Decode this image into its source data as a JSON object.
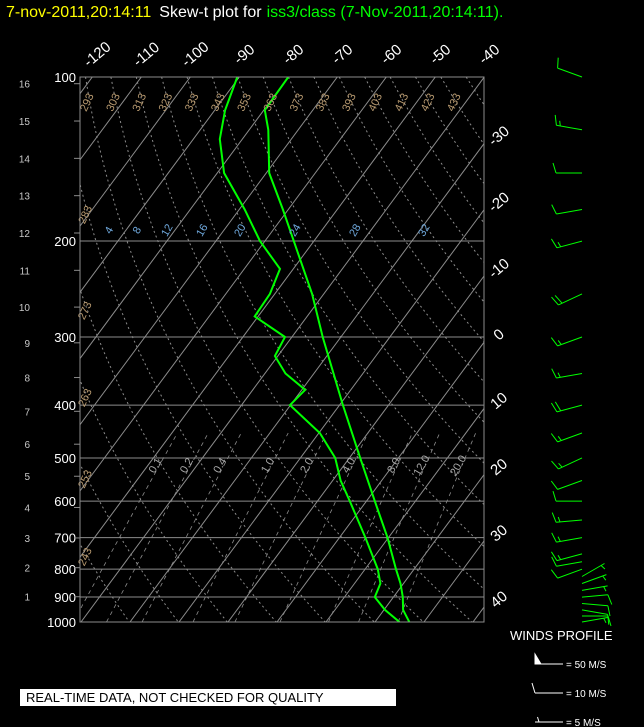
{
  "chart_data": {
    "type": "skewt",
    "title_time": "7-nov-2011,20:14:11",
    "title_prefix": "Skew-t plot for",
    "title_station": "iss3/class (7-Nov-2011,20:14:11).",
    "ylim": [
      1000,
      100
    ],
    "log_y": true,
    "yticks": [
      100,
      200,
      300,
      400,
      500,
      600,
      700,
      800,
      900,
      1000
    ],
    "height_ticks": [
      1,
      2,
      3,
      4,
      5,
      6,
      7,
      8,
      9,
      10,
      11,
      12,
      13,
      14,
      15,
      16
    ],
    "xticks": [
      -120,
      -110,
      -100,
      -90,
      -80,
      -70,
      -60,
      -50,
      -40,
      -30,
      -20,
      -10,
      0,
      10,
      20,
      30,
      40
    ],
    "grid_color": "#8c8c8c",
    "dry_adiabats": [
      243,
      253,
      263,
      273,
      283,
      293,
      303,
      313,
      323,
      333,
      343,
      353,
      363,
      373,
      383,
      393,
      403,
      413,
      423,
      433,
      443
    ],
    "dry_adiabat_color": "#b89a70",
    "mixing_ratios": [
      0.1,
      0.2,
      0.4,
      {
        "value": 1,
        "label": "1.0"
      },
      {
        "value": 2,
        "label": "2.0"
      },
      {
        "value": 4,
        "label": "4.0"
      },
      {
        "value": 8,
        "label": "8.0"
      },
      {
        "value": 12,
        "label": "12.0"
      },
      {
        "value": 20,
        "label": "20.0"
      }
    ],
    "moist_adiabat_labels": [
      4,
      8,
      12,
      16,
      20,
      24,
      28,
      32
    ],
    "moist_label_color": "#6fa8dc",
    "series": [
      {
        "color": "#00ff00",
        "pressure": [
          1000,
          950,
          900,
          850,
          800,
          700,
          600,
          500,
          400,
          300,
          250,
          200,
          175,
          150,
          125,
          115,
          100
        ],
        "values": [
          27,
          23.9,
          21.9,
          19.4,
          16.3,
          9.8,
          1.7,
          -7.8,
          -19.3,
          -33.7,
          -42.4,
          -54.1,
          -61.1,
          -69.4,
          -76.1,
          -79.8,
          -80
        ]
      },
      {
        "color": "#00ff00",
        "pressure": [
          1000,
          950,
          900,
          850,
          800,
          700,
          600,
          550,
          500,
          450,
          400,
          375,
          350,
          325,
          300,
          275,
          250,
          225,
          200,
          175,
          150,
          130,
          115,
          100
        ],
        "values": [
          25,
          20.2,
          16.2,
          15.3,
          12.6,
          5.3,
          -3.4,
          -8.4,
          -12.9,
          -19.8,
          -30.1,
          -29.3,
          -35.8,
          -40.6,
          -41.4,
          -50.7,
          -51,
          -52.7,
          -61,
          -68.9,
          -78.6,
          -84.6,
          -87.9,
          -90.4
        ]
      }
    ],
    "winds": {
      "title": "WINDS PROFILE",
      "color": "#00ff00",
      "pressure": [
        1000,
        975,
        950,
        925,
        900,
        875,
        850,
        825,
        800,
        775,
        750,
        700,
        650,
        600,
        550,
        500,
        450,
        400,
        350,
        300,
        250,
        200,
        175,
        150,
        125,
        100
      ],
      "direction": [
        80,
        90,
        100,
        95,
        85,
        80,
        70,
        60,
        250,
        260,
        255,
        260,
        265,
        270,
        250,
        245,
        250,
        255,
        260,
        250,
        245,
        255,
        260,
        270,
        280,
        290
      ],
      "speed": [
        5,
        10,
        10,
        10,
        10,
        5,
        5,
        5,
        10,
        10,
        15,
        15,
        15,
        10,
        10,
        15,
        15,
        20,
        15,
        15,
        20,
        15,
        10,
        10,
        15,
        10
      ]
    },
    "wind_legend": [
      {
        "value": 50,
        "label": "= 50 M/S"
      },
      {
        "value": 10,
        "label": "= 10 M/S"
      },
      {
        "value": 5,
        "label": "= 5 M/S"
      }
    ],
    "note": "REAL-TIME DATA, NOT CHECKED FOR QUALITY"
  }
}
